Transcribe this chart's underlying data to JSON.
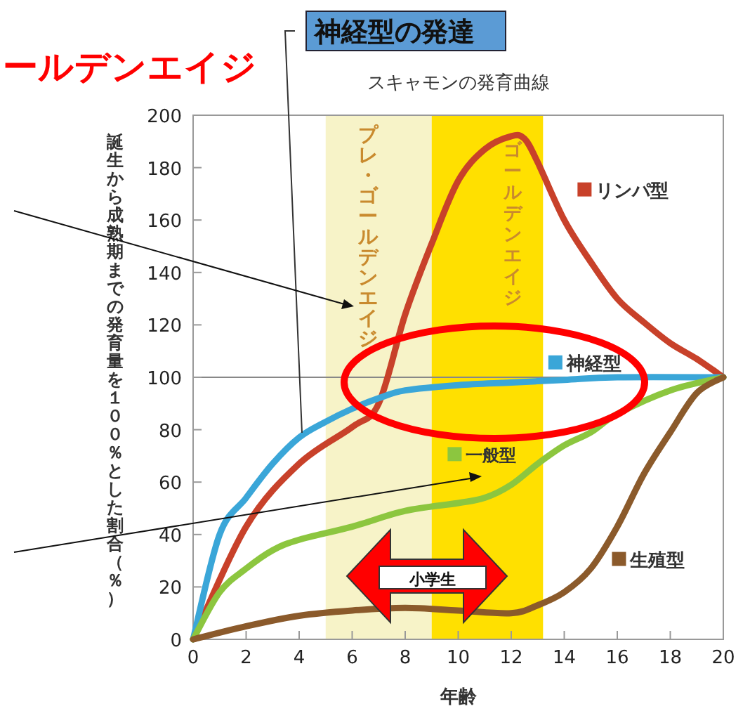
{
  "chart_data": {
    "type": "line",
    "title": "スキャモンの発育曲線",
    "xlabel": "年齢",
    "ylabel": "誕生から成熟期までの発育量を１００％とした割合（％）",
    "xlim": [
      0,
      20
    ],
    "ylim": [
      0,
      200
    ],
    "xticks": [
      0,
      2,
      4,
      6,
      8,
      10,
      12,
      14,
      16,
      18,
      20
    ],
    "yticks": [
      0,
      20,
      40,
      60,
      80,
      100,
      120,
      140,
      160,
      180,
      200
    ],
    "series": [
      {
        "name": "リンパ型",
        "color": "#c8412a",
        "x": [
          0,
          2,
          4,
          6,
          7,
          8,
          9,
          10,
          11,
          12,
          12.5,
          13,
          14,
          15,
          16,
          17,
          18,
          19,
          20
        ],
        "values": [
          0,
          43,
          67,
          81,
          90,
          124,
          151,
          175,
          187,
          192,
          191,
          182,
          160,
          144,
          130,
          121,
          113,
          107,
          100
        ]
      },
      {
        "name": "神経型",
        "color": "#3aa6d8",
        "x": [
          0,
          1,
          2,
          3,
          4,
          5,
          6,
          7,
          8,
          10,
          12,
          14,
          16,
          20
        ],
        "values": [
          0,
          40,
          54,
          67,
          77,
          83,
          88,
          92,
          95,
          97,
          98,
          99,
          100,
          100
        ]
      },
      {
        "name": "一般型",
        "color": "#8cc63f",
        "x": [
          0,
          1,
          2,
          3,
          4,
          6,
          8,
          10,
          11,
          12,
          13,
          14,
          15,
          16,
          18,
          20
        ],
        "values": [
          0,
          18,
          27,
          34,
          38,
          43,
          49,
          52,
          54,
          59,
          67,
          74,
          79,
          86,
          95,
          100
        ]
      },
      {
        "name": "生殖型",
        "color": "#8b5a2b",
        "x": [
          0,
          2,
          4,
          6,
          8,
          10,
          12,
          13,
          14,
          15,
          16,
          17,
          18,
          19,
          20
        ],
        "values": [
          0,
          5,
          9,
          11,
          12,
          11,
          10,
          13,
          18,
          27,
          43,
          63,
          79,
          94,
          100
        ]
      }
    ],
    "bands": [
      {
        "axis": "x",
        "from": 5,
        "to": 9,
        "label": "プレ・ゴールデンエイジ",
        "color": "#f7f3c8"
      },
      {
        "axis": "x",
        "from": 9,
        "to": 13.2,
        "label": "ゴールデンエイジ",
        "color": "#ffe000"
      }
    ],
    "ref_lines": [
      {
        "axis": "y",
        "value": 100,
        "color": "#888888"
      }
    ],
    "legend": "right",
    "annotations": [
      "神経型の発達",
      "ールデンエイジ",
      "小学生"
    ]
  }
}
